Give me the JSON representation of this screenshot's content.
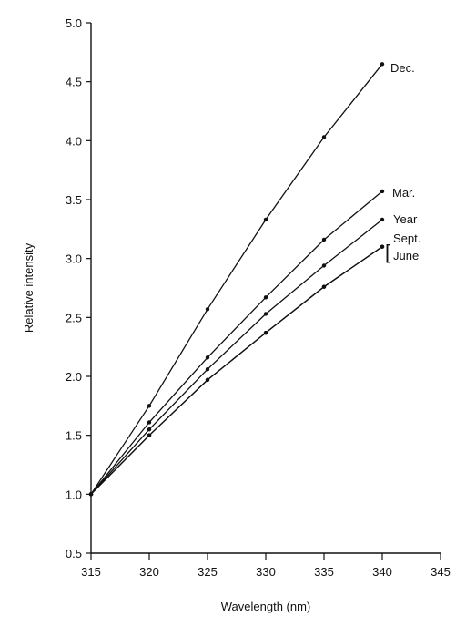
{
  "chart_data": {
    "type": "line",
    "title": "",
    "xlabel": "Wavelength (nm)",
    "ylabel": "Relative intensity",
    "xlim": [
      315,
      345
    ],
    "ylim": [
      0.5,
      5.0
    ],
    "x_ticks": [
      "315",
      "320",
      "325",
      "330",
      "335",
      "340",
      "345"
    ],
    "y_ticks": [
      "0.5",
      "1.0",
      "1.5",
      "2.0",
      "2.5",
      "3.0",
      "3.5",
      "4.0",
      "4.5",
      "5.0"
    ],
    "grid": false,
    "legend": "none",
    "x": [
      315,
      320,
      325,
      330,
      335,
      340
    ],
    "series": [
      {
        "name": "Dec.",
        "values": [
          1.0,
          1.75,
          2.57,
          3.33,
          4.03,
          4.65
        ]
      },
      {
        "name": "Mar.",
        "values": [
          1.0,
          1.61,
          2.16,
          2.67,
          3.16,
          3.57
        ]
      },
      {
        "name": "Year",
        "values": [
          1.0,
          1.55,
          2.06,
          2.53,
          2.94,
          3.33
        ]
      },
      {
        "name": "Sept.",
        "values": [
          1.0,
          1.5,
          1.97,
          2.37,
          2.76,
          3.1
        ]
      },
      {
        "name": "June",
        "values": [
          1.0,
          1.5,
          1.97,
          2.37,
          2.76,
          3.1
        ]
      }
    ],
    "series_labels": [
      {
        "text": "Dec.",
        "series": 0
      },
      {
        "text": "Mar.",
        "series": 1
      },
      {
        "text": "Year",
        "series": 2
      },
      {
        "text": "Sept.",
        "series": 3
      },
      {
        "text": "[",
        "series": 3
      },
      {
        "text": "June",
        "series": 3
      }
    ]
  }
}
